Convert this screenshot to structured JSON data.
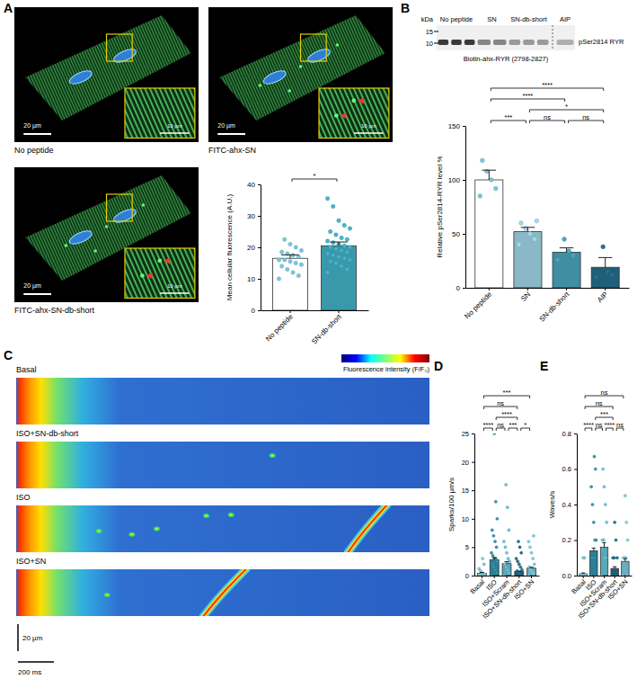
{
  "panel_labels": [
    "A",
    "B",
    "C",
    "D",
    "E"
  ],
  "micrographs": [
    {
      "label": "No peptide",
      "scale_bar": "20 µm",
      "inset_scale_bar": "10 µm",
      "inset_arrows": 0
    },
    {
      "label": "FITC-ahx-SN",
      "scale_bar": "20 µm",
      "inset_scale_bar": "10 µm",
      "inset_arrows": 2
    },
    {
      "label": "FITC-ahx-SN-db-short",
      "scale_bar": "20 µm",
      "inset_scale_bar": "10 µm",
      "inset_arrows": 2
    }
  ],
  "blot": {
    "mw_unit": "kDa",
    "mw_markers": [
      "15",
      "10"
    ],
    "lanes": [
      "No peptide",
      "SN",
      "SN-db-short",
      "AIP"
    ],
    "band_label": "pSer2814 RYR",
    "substrate": "Biotin-ahx-RYR (2798-2827)"
  },
  "linescans": {
    "traces": [
      "Basal",
      "ISO+SN-db-short",
      "ISO",
      "ISO+SN"
    ],
    "colorbar_title": "Fluorescence intensity (F/F₀)",
    "scale_y": "20 µm",
    "scale_x": "200 ms"
  },
  "chart_data": [
    {
      "type": "bar",
      "y_label": "Mean cellular fluorescence (A.U.)",
      "categories": [
        "No peptide",
        "SN-db-short"
      ],
      "values": [
        16.5,
        20.5
      ],
      "errors": [
        1.1,
        1.2
      ],
      "colors": [
        "#ffffff",
        "#3a98aa"
      ],
      "points": [
        [
          10,
          11,
          12,
          13,
          14,
          14.5,
          15,
          15.5,
          16,
          16,
          17,
          17.5,
          18,
          18.5,
          19,
          20,
          21,
          22.5
        ],
        [
          12,
          13,
          14,
          15,
          15.5,
          16,
          16.5,
          17,
          17.5,
          18,
          18.5,
          19,
          19.5,
          20,
          20,
          20.5,
          21,
          21.5,
          22,
          22.5,
          23,
          24,
          25,
          26,
          27,
          28.5,
          33,
          35.5
        ]
      ],
      "comparisons": [
        {
          "pair": [
            0,
            1
          ],
          "label": "*"
        }
      ],
      "ylim": [
        0,
        40
      ],
      "yticks": [
        0,
        10,
        20,
        30,
        40
      ]
    },
    {
      "type": "bar",
      "y_label": "Relative pSer2814-RYR level %",
      "categories": [
        "No peptide",
        "SN",
        "SN-db-short",
        "AIP"
      ],
      "values": [
        100,
        52,
        33,
        19
      ],
      "errors": [
        9,
        4,
        4,
        9
      ],
      "colors": [
        "#ffffff",
        "#8ab8c6",
        "#3f8ea2",
        "#1f5f78"
      ],
      "points": [
        [
          85,
          92,
          100,
          108,
          118
        ],
        [
          40,
          45,
          50,
          55,
          60,
          62
        ],
        [
          26,
          30,
          34,
          45
        ],
        [
          10,
          12,
          15,
          38
        ]
      ],
      "comparisons": [
        {
          "pair": [
            0,
            3
          ],
          "label": "****"
        },
        {
          "pair": [
            0,
            2
          ],
          "label": "****"
        },
        {
          "pair": [
            1,
            3
          ],
          "label": "*"
        },
        {
          "pair": [
            0,
            1
          ],
          "label": "***"
        },
        {
          "pair": [
            1,
            2
          ],
          "label": "ns"
        },
        {
          "pair": [
            2,
            3
          ],
          "label": "ns"
        }
      ],
      "ylim": [
        0,
        150
      ],
      "yticks": [
        0,
        50,
        100,
        150
      ]
    },
    {
      "type": "bar",
      "y_label": "Sparks/100 µm/s",
      "categories": [
        "Basal",
        "ISO",
        "ISO+Scram",
        "ISO+SN-db-short",
        "ISO+SN"
      ],
      "values": [
        0.4,
        2.8,
        2.1,
        0.7,
        1.3
      ],
      "errors": [
        0.15,
        0.35,
        0.35,
        0.1,
        0.15
      ],
      "colors": [
        "#ffffff",
        "#2c7f96",
        "#5aa7b9",
        "#1b5f78",
        "#6aafc0"
      ],
      "points": [
        [
          0,
          0,
          0,
          0,
          0,
          0.2,
          0.3,
          0.5,
          0.8,
          1.2,
          2,
          3
        ],
        [
          0,
          0.5,
          1,
          1.5,
          2,
          2.5,
          3,
          3,
          3.5,
          4,
          5,
          6,
          7,
          8,
          10,
          13,
          25
        ],
        [
          0,
          0.5,
          1,
          1.5,
          2,
          2.5,
          3,
          4,
          5,
          6,
          8,
          12,
          16
        ],
        [
          0,
          0,
          0.3,
          0.5,
          0.8,
          1,
          1.5,
          2,
          2.5,
          3,
          4,
          5,
          6
        ],
        [
          0,
          0.3,
          0.6,
          1,
          1.5,
          2,
          3,
          4,
          5,
          6,
          7
        ]
      ],
      "comparisons": [
        {
          "pair": [
            0,
            4
          ],
          "label": "***"
        },
        {
          "pair": [
            0,
            3
          ],
          "label": "ns"
        },
        {
          "pair": [
            1,
            3
          ],
          "label": "****"
        },
        {
          "pair": [
            0,
            1
          ],
          "label": "****"
        },
        {
          "pair": [
            1,
            2
          ],
          "label": "ns"
        },
        {
          "pair": [
            2,
            3
          ],
          "label": "***"
        },
        {
          "pair": [
            3,
            4
          ],
          "label": "*"
        }
      ],
      "ylim": [
        0,
        25
      ],
      "yticks": [
        0,
        5,
        10,
        15,
        20,
        25
      ]
    },
    {
      "type": "bar",
      "y_label": "Waves/s",
      "categories": [
        "Basal",
        "ISO",
        "ISO+Scram",
        "ISO+SN-db-short",
        "ISO+SN"
      ],
      "values": [
        0.01,
        0.14,
        0.16,
        0.04,
        0.08
      ],
      "errors": [
        0.005,
        0.015,
        0.025,
        0.01,
        0.015
      ],
      "colors": [
        "#ffffff",
        "#2c7f96",
        "#5aa7b9",
        "#1b5f78",
        "#6aafc0"
      ],
      "points": [
        [
          0,
          0,
          0,
          0,
          0,
          0,
          0.1,
          0.1
        ],
        [
          0,
          0,
          0.1,
          0.1,
          0.1,
          0.2,
          0.2,
          0.3,
          0.4,
          0.5,
          0.6,
          0.67
        ],
        [
          0,
          0.1,
          0.1,
          0.2,
          0.2,
          0.3,
          0.4,
          0.5,
          0.6
        ],
        [
          0,
          0,
          0,
          0.1,
          0.1,
          0.1,
          0.2,
          0.3
        ],
        [
          0,
          0,
          0.1,
          0.1,
          0.1,
          0.2,
          0.3,
          0.45
        ]
      ],
      "comparisons": [
        {
          "pair": [
            0,
            4
          ],
          "label": "ns"
        },
        {
          "pair": [
            0,
            3
          ],
          "label": "ns"
        },
        {
          "pair": [
            1,
            3
          ],
          "label": "***"
        },
        {
          "pair": [
            0,
            1
          ],
          "label": "****"
        },
        {
          "pair": [
            1,
            2
          ],
          "label": "ns"
        },
        {
          "pair": [
            2,
            3
          ],
          "label": "****"
        },
        {
          "pair": [
            3,
            4
          ],
          "label": "ns"
        }
      ],
      "ylim": [
        0,
        0.8
      ],
      "yticks": [
        {
          "value": 0,
          "label": "0.0"
        },
        {
          "value": 0.2,
          "label": "0.2"
        },
        {
          "value": 0.4,
          "label": "0.4"
        },
        {
          "value": 0.6,
          "label": "0.6"
        },
        {
          "value": 0.8,
          "label": "0.8"
        }
      ]
    }
  ]
}
